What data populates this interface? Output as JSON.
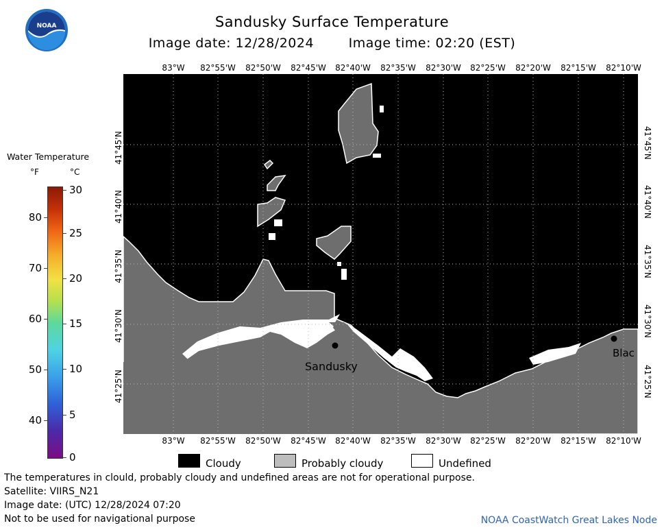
{
  "header": {
    "title": "Sandusky Surface Temperature",
    "image_date": "Image date: 12/28/2024",
    "image_time": "Image time: 02:20 (EST)"
  },
  "logo": {
    "text": "NOAA",
    "icon": "noaa-logo"
  },
  "axes": {
    "lon_labels": [
      "83°W",
      "82°55'W",
      "82°50'W",
      "82°45'W",
      "82°40'W",
      "82°35'W",
      "82°30'W",
      "82°25'W",
      "82°20'W",
      "82°15'W",
      "82°10'W"
    ],
    "lat_labels": [
      "41°45'N",
      "41°40'N",
      "41°35'N",
      "41°30'N",
      "41°25'N"
    ]
  },
  "map": {
    "city_label": "Sandusky",
    "edge_city_label": "Blac",
    "colors": {
      "cloudy": "#000000",
      "probably_cloudy": "#6e6e6e",
      "undefined": "#ffffff"
    }
  },
  "scale": {
    "title": "Water Temperature",
    "unit_f": "°F",
    "unit_c": "°C",
    "f_ticks": [
      "80",
      "70",
      "60",
      "50",
      "40"
    ],
    "c_ticks": [
      "30",
      "25",
      "20",
      "15",
      "10",
      "5",
      "0"
    ]
  },
  "legend": {
    "cloudy": "Cloudy",
    "probably_cloudy": "Probably cloudy",
    "undefined": "Undefined"
  },
  "footer": {
    "disclaimer": "The temperatures in clould, probably cloudy and undefined areas are not for operational purpose.",
    "satellite": "Satellite: VIIRS_N21",
    "utc_date": "Image date: (UTC) 12/28/2024  07:20",
    "nav_warning": "Not to be used for navigational purpose",
    "credit": "NOAA CoastWatch Great Lakes Node"
  }
}
